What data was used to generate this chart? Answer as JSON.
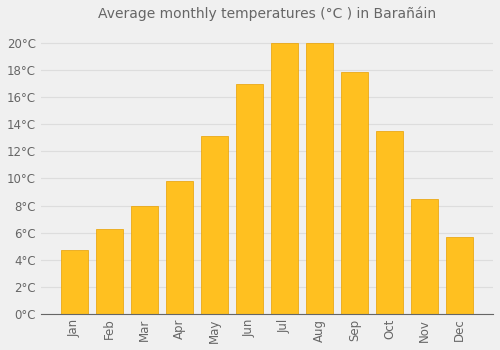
{
  "title": "Average monthly temperatures (°C ) in Barañáin",
  "months": [
    "Jan",
    "Feb",
    "Mar",
    "Apr",
    "May",
    "Jun",
    "Jul",
    "Aug",
    "Sep",
    "Oct",
    "Nov",
    "Dec"
  ],
  "values": [
    4.7,
    6.3,
    8.0,
    9.8,
    13.1,
    17.0,
    20.0,
    20.0,
    17.9,
    13.5,
    8.5,
    5.7
  ],
  "bar_color": "#FFC020",
  "bar_edge_color": "#E8A000",
  "background_color": "#F0F0F0",
  "grid_color": "#DDDDDD",
  "text_color": "#666666",
  "ylim": [
    0,
    21
  ],
  "yticks": [
    0,
    2,
    4,
    6,
    8,
    10,
    12,
    14,
    16,
    18,
    20
  ],
  "title_fontsize": 10,
  "tick_fontsize": 8.5,
  "bar_width": 0.75
}
